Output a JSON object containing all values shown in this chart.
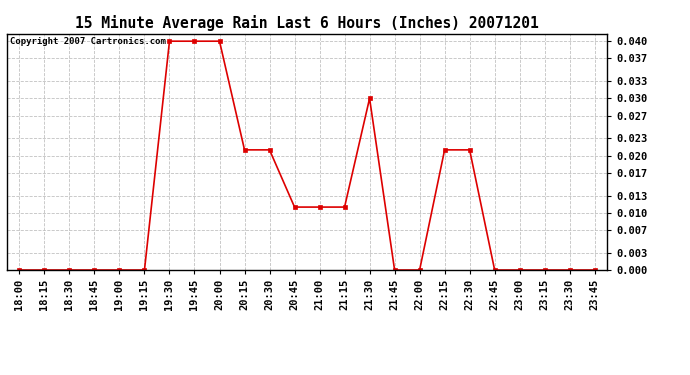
{
  "title": "15 Minute Average Rain Last 6 Hours (Inches) 20071201",
  "copyright_text": "Copyright 2007 Cartronics.com",
  "line_color": "#dd0000",
  "marker_color": "#dd0000",
  "background_color": "#ffffff",
  "grid_color": "#bbbbbb",
  "ylim": [
    0.0,
    0.0413
  ],
  "yticks": [
    0.0,
    0.003,
    0.007,
    0.01,
    0.013,
    0.017,
    0.02,
    0.023,
    0.027,
    0.03,
    0.033,
    0.037,
    0.04
  ],
  "x_labels": [
    "18:00",
    "18:15",
    "18:30",
    "18:45",
    "19:00",
    "19:15",
    "19:30",
    "19:45",
    "20:00",
    "20:15",
    "20:30",
    "20:45",
    "21:00",
    "21:15",
    "21:30",
    "21:45",
    "22:00",
    "22:15",
    "22:30",
    "22:45",
    "23:00",
    "23:15",
    "23:30",
    "23:45"
  ],
  "y_values": [
    0.0,
    0.0,
    0.0,
    0.0,
    0.0,
    0.0,
    0.04,
    0.04,
    0.04,
    0.021,
    0.021,
    0.011,
    0.011,
    0.011,
    0.03,
    0.0,
    0.0,
    0.021,
    0.021,
    0.0,
    0.0,
    0.0,
    0.0,
    0.0
  ],
  "title_fontsize": 10.5,
  "tick_fontsize": 7.5,
  "copyright_fontsize": 6.5
}
